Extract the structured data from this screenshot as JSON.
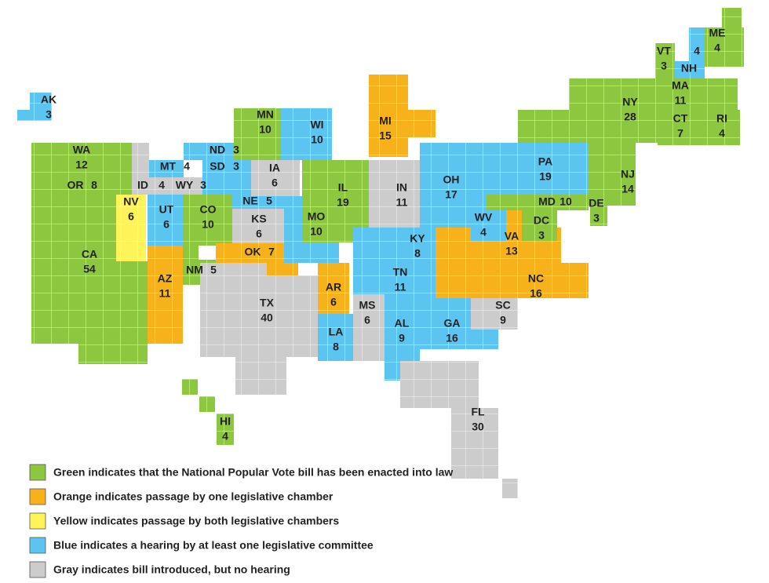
{
  "states": [
    {
      "abbr": "AK",
      "votes": 3,
      "color": "#5bc4f1"
    },
    {
      "abbr": "WA",
      "votes": 12,
      "color": "#8dc63f"
    },
    {
      "abbr": "OR",
      "votes": 8,
      "color": "#8dc63f"
    },
    {
      "abbr": "CA",
      "votes": 54,
      "color": "#8dc63f"
    },
    {
      "abbr": "NV",
      "votes": 6,
      "color": "#fff35a"
    },
    {
      "abbr": "ID",
      "votes": 4,
      "color": "#cccccc"
    },
    {
      "abbr": "MT",
      "votes": 4,
      "color": "#5bc4f1"
    },
    {
      "abbr": "WY",
      "votes": 3,
      "color": "#cccccc"
    },
    {
      "abbr": "UT",
      "votes": 6,
      "color": "#5bc4f1"
    },
    {
      "abbr": "AZ",
      "votes": 11,
      "color": "#f7b21b"
    },
    {
      "abbr": "CO",
      "votes": 10,
      "color": "#8dc63f"
    },
    {
      "abbr": "NM",
      "votes": 5,
      "color": "#8dc63f"
    },
    {
      "abbr": "ND",
      "votes": 3,
      "color": "#5bc4f1"
    },
    {
      "abbr": "SD",
      "votes": 3,
      "color": "#5bc4f1"
    },
    {
      "abbr": "NE",
      "votes": 5,
      "color": "#5bc4f1"
    },
    {
      "abbr": "KS",
      "votes": 6,
      "color": "#cccccc"
    },
    {
      "abbr": "OK",
      "votes": 7,
      "color": "#f7b21b"
    },
    {
      "abbr": "TX",
      "votes": 40,
      "color": "#cccccc"
    },
    {
      "abbr": "MN",
      "votes": 10,
      "color": "#8dc63f"
    },
    {
      "abbr": "IA",
      "votes": 6,
      "color": "#cccccc"
    },
    {
      "abbr": "WI",
      "votes": 10,
      "color": "#5bc4f1"
    },
    {
      "abbr": "MO",
      "votes": 10,
      "color": "#5bc4f1"
    },
    {
      "abbr": "AR",
      "votes": 6,
      "color": "#f7b21b"
    },
    {
      "abbr": "LA",
      "votes": 8,
      "color": "#5bc4f1"
    },
    {
      "abbr": "IL",
      "votes": 19,
      "color": "#8dc63f"
    },
    {
      "abbr": "MI",
      "votes": 15,
      "color": "#f7b21b"
    },
    {
      "abbr": "IN",
      "votes": 11,
      "color": "#cccccc"
    },
    {
      "abbr": "OH",
      "votes": 17,
      "color": "#5bc4f1"
    },
    {
      "abbr": "KY",
      "votes": 8,
      "color": "#5bc4f1"
    },
    {
      "abbr": "TN",
      "votes": 11,
      "color": "#5bc4f1"
    },
    {
      "abbr": "MS",
      "votes": 6,
      "color": "#cccccc"
    },
    {
      "abbr": "AL",
      "votes": 9,
      "color": "#5bc4f1"
    },
    {
      "abbr": "GA",
      "votes": 16,
      "color": "#5bc4f1"
    },
    {
      "abbr": "FL",
      "votes": 30,
      "color": "#cccccc"
    },
    {
      "abbr": "SC",
      "votes": 9,
      "color": "#cccccc"
    },
    {
      "abbr": "NC",
      "votes": 16,
      "color": "#f7b21b"
    },
    {
      "abbr": "VA",
      "votes": 13,
      "color": "#f7b21b"
    },
    {
      "abbr": "WV",
      "votes": 4,
      "color": "#5bc4f1"
    },
    {
      "abbr": "MD",
      "votes": 10,
      "color": "#8dc63f"
    },
    {
      "abbr": "DC",
      "votes": 3,
      "color": "#8dc63f"
    },
    {
      "abbr": "DE",
      "votes": 3,
      "color": "#8dc63f"
    },
    {
      "abbr": "PA",
      "votes": 19,
      "color": "#5bc4f1"
    },
    {
      "abbr": "NJ",
      "votes": 14,
      "color": "#8dc63f"
    },
    {
      "abbr": "NY",
      "votes": 28,
      "color": "#8dc63f"
    },
    {
      "abbr": "CT",
      "votes": 7,
      "color": "#8dc63f"
    },
    {
      "abbr": "RI",
      "votes": 4,
      "color": "#8dc63f"
    },
    {
      "abbr": "MA",
      "votes": 11,
      "color": "#8dc63f"
    },
    {
      "abbr": "VT",
      "votes": 3,
      "color": "#8dc63f"
    },
    {
      "abbr": "NH",
      "votes": 4,
      "color": "#5bc4f1"
    },
    {
      "abbr": "ME",
      "votes": 4,
      "color": "#8dc63f"
    },
    {
      "abbr": "HI",
      "votes": 4,
      "color": "#8dc63f"
    }
  ],
  "legend": [
    {
      "text": "Green indicates that the National Popular Vote bill has been enacted into law",
      "color": "#8dc63f"
    },
    {
      "text": "Orange indicates passage by one legislative chamber",
      "color": "#f7b21b"
    },
    {
      "text": "Yellow indicates passage by both legislative chambers",
      "color": "#fff35a"
    },
    {
      "text": "Blue indicates a hearing by at least one legislative committee",
      "color": "#5bc4f1"
    },
    {
      "text": "Gray indicates bill introduced, but no hearing",
      "color": "#cccccc"
    }
  ]
}
